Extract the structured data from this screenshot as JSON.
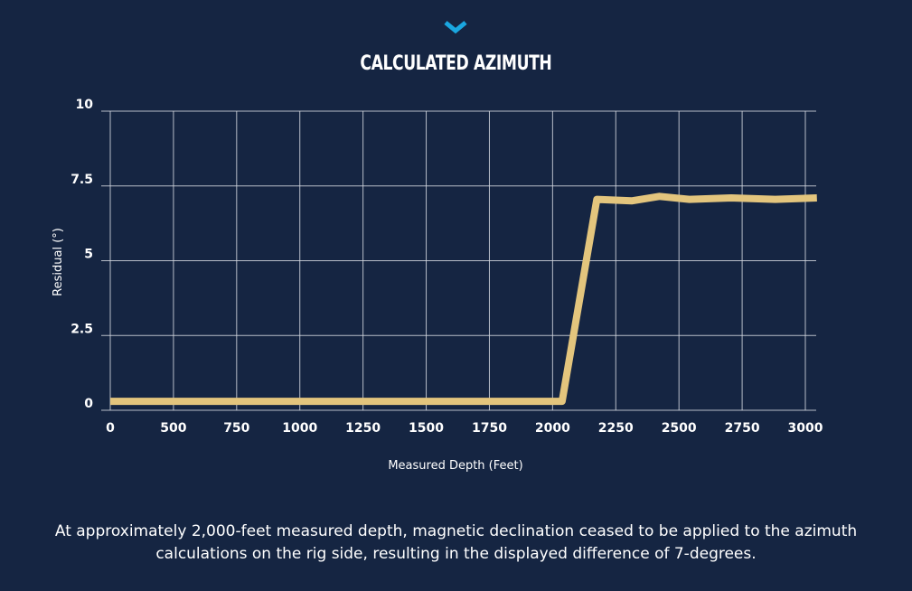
{
  "header": {
    "chevron_icon": "chevron-down-icon",
    "chevron_color": "#1aa7e0"
  },
  "colors": {
    "background": "#152542",
    "line": "#e3c57d",
    "grid": "#d4d8e0",
    "text": "#ffffff"
  },
  "chart_data": {
    "type": "line",
    "title": "CALCULATED AZIMUTH",
    "xlabel": "Measured Depth (Feet)",
    "ylabel": "Residual (°)",
    "xlim": [
      0,
      3000
    ],
    "ylim": [
      0,
      10
    ],
    "x_ticks": [
      0,
      500,
      750,
      1000,
      1250,
      1500,
      1750,
      2000,
      2250,
      2500,
      2750,
      3000
    ],
    "y_ticks": [
      0,
      2.5,
      5,
      7.5,
      10
    ],
    "y_tick_labels": [
      "0",
      "2.5",
      "5",
      "7.5",
      "10"
    ],
    "grid": true,
    "series": [
      {
        "name": "Residual",
        "points": [
          [
            0,
            0.3
          ],
          [
            250,
            0.3
          ],
          [
            500,
            0.3
          ],
          [
            750,
            0.3
          ],
          [
            1000,
            0.3
          ],
          [
            1250,
            0.3
          ],
          [
            1500,
            0.3
          ],
          [
            1750,
            0.3
          ],
          [
            1950,
            0.3
          ],
          [
            2100,
            7.05
          ],
          [
            2250,
            7.0
          ],
          [
            2370,
            7.15
          ],
          [
            2500,
            7.05
          ],
          [
            2680,
            7.1
          ],
          [
            2870,
            7.05
          ],
          [
            3050,
            7.1
          ]
        ]
      }
    ]
  },
  "caption": "At approximately 2,000-feet measured depth, magnetic declination ceased to be applied to the azimuth calculations on the rig side, resulting in the displayed difference of 7-degrees."
}
